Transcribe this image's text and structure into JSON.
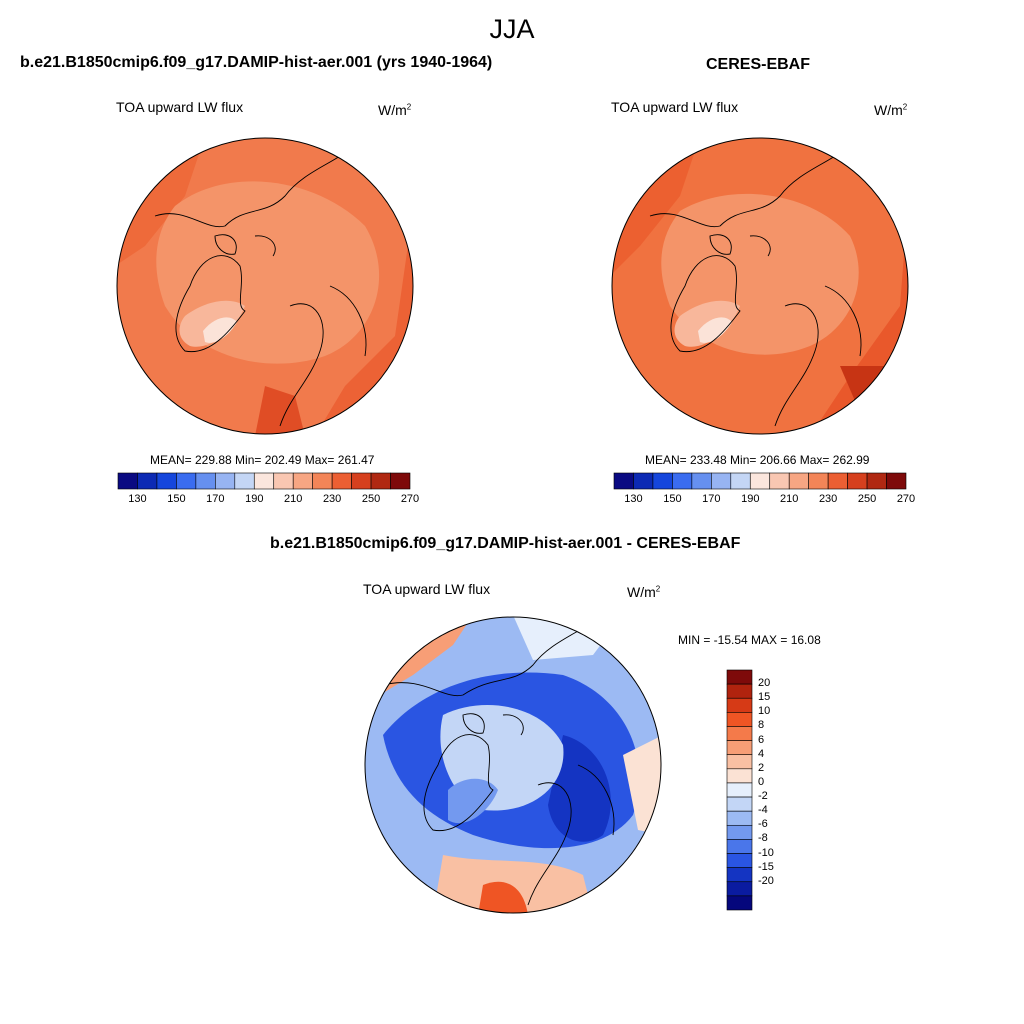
{
  "figure": {
    "title": "JJA"
  },
  "panels": {
    "model": {
      "title": "b.e21.B1850cmip6.f09_g17.DAMIP-hist-aer.001 (yrs 1940-1964)",
      "variable": "TOA upward LW flux",
      "units": "W/m",
      "units_sup": "2",
      "stats": "MEAN= 229.88  Min= 202.49  Max= 261.47"
    },
    "obs": {
      "title": "CERES-EBAF",
      "variable": "TOA upward LW flux",
      "units": "W/m",
      "units_sup": "2",
      "stats": "MEAN= 233.48  Min= 206.66  Max= 262.99"
    },
    "diff": {
      "title": "b.e21.B1850cmip6.f09_g17.DAMIP-hist-aer.001 - CERES-EBAF",
      "variable": "TOA upward LW flux",
      "units": "W/m",
      "units_sup": "2",
      "stats": "MIN = -15.54 MAX =  16.08"
    }
  },
  "colorbars": {
    "absolute": {
      "colors": [
        "#0a0a82",
        "#0c2ab4",
        "#1546dc",
        "#3a6cf0",
        "#6690f0",
        "#97b4f2",
        "#c4d6f5",
        "#fbe6dd",
        "#f9c7b2",
        "#f7a683",
        "#f38558",
        "#ec5f33",
        "#d6401e",
        "#b02812",
        "#7e0a0a"
      ],
      "tick_labels": [
        "130",
        "150",
        "170",
        "190",
        "210",
        "230",
        "250",
        "270"
      ]
    },
    "difference": {
      "colors": [
        "#7e0a0a",
        "#b0230e",
        "#d63a16",
        "#ef5524",
        "#f47a4a",
        "#f79e76",
        "#f9c0a3",
        "#fbe2d4",
        "#e6effc",
        "#c3d6f6",
        "#9cbaf3",
        "#7399ef",
        "#4a76ea",
        "#2a55e2",
        "#1434c2",
        "#0a1ba0",
        "#05077c"
      ],
      "tick_labels": [
        "20",
        "15",
        "10",
        "8",
        "6",
        "4",
        "2",
        "0",
        "-2",
        "-4",
        "-6",
        "-8",
        "-10",
        "-15",
        "-20"
      ]
    }
  },
  "chart_data": [
    {
      "type": "heatmap",
      "title": "b.e21.B1850cmip6.f09_g17.DAMIP-hist-aer.001 (yrs 1940-1964)",
      "subtitle": "TOA upward LW flux",
      "units": "W/m2",
      "season": "JJA",
      "projection": "north polar stereographic",
      "mean": 229.88,
      "min": 202.49,
      "max": 261.47,
      "color_levels": [
        130,
        140,
        150,
        160,
        170,
        180,
        190,
        200,
        210,
        220,
        230,
        240,
        250,
        260,
        270
      ]
    },
    {
      "type": "heatmap",
      "title": "CERES-EBAF",
      "subtitle": "TOA upward LW flux",
      "units": "W/m2",
      "season": "JJA",
      "projection": "north polar stereographic",
      "mean": 233.48,
      "min": 206.66,
      "max": 262.99,
      "color_levels": [
        130,
        140,
        150,
        160,
        170,
        180,
        190,
        200,
        210,
        220,
        230,
        240,
        250,
        260,
        270
      ]
    },
    {
      "type": "heatmap",
      "title": "b.e21.B1850cmip6.f09_g17.DAMIP-hist-aer.001 - CERES-EBAF",
      "subtitle": "TOA upward LW flux",
      "units": "W/m2",
      "season": "JJA",
      "projection": "north polar stereographic",
      "min": -15.54,
      "max": 16.08,
      "color_levels": [
        -20,
        -15,
        -10,
        -8,
        -6,
        -4,
        -2,
        0,
        2,
        4,
        6,
        8,
        10,
        15,
        20
      ]
    }
  ]
}
